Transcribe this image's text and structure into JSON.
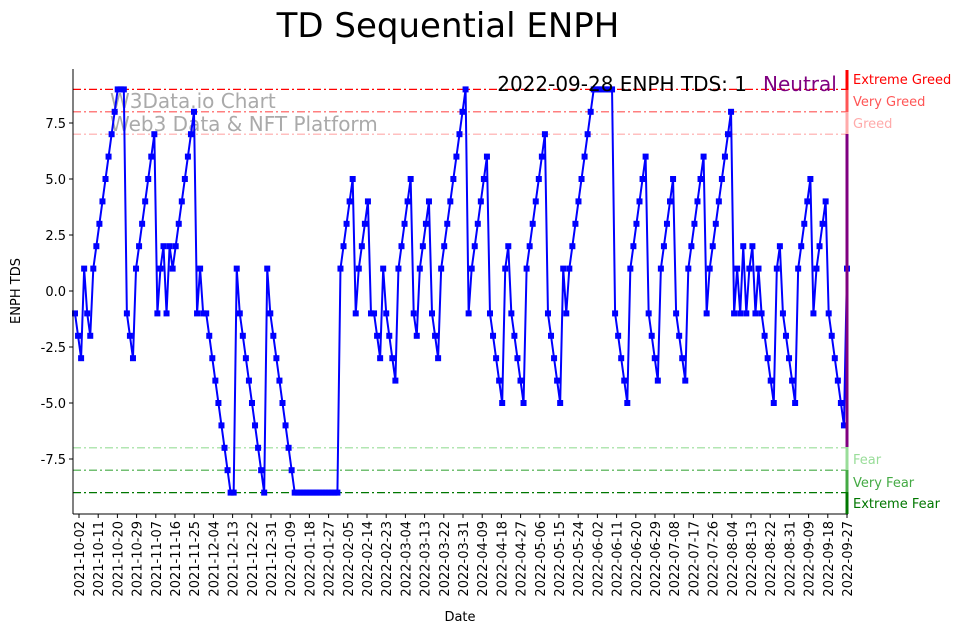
{
  "chart_data": {
    "type": "line",
    "title": "TD Sequential ENPH",
    "xlabel": "Date",
    "ylabel": "ENPH TDS",
    "ylim": [
      -9.8,
      9.8
    ],
    "yticks": [
      "-7.5",
      "-5.0",
      "-2.5",
      "0.0",
      "2.5",
      "5.0",
      "7.5"
    ],
    "ytick_values": [
      -7.5,
      -5,
      -2.5,
      0,
      2.5,
      5,
      7.5
    ],
    "xticks": [
      "2021-10-02",
      "2021-10-11",
      "2021-10-20",
      "2021-10-29",
      "2021-11-07",
      "2021-11-16",
      "2021-11-25",
      "2021-12-04",
      "2021-12-13",
      "2021-12-22",
      "2021-12-31",
      "2022-01-09",
      "2022-01-18",
      "2022-01-27",
      "2022-02-05",
      "2022-02-14",
      "2022-02-23",
      "2022-03-04",
      "2022-03-13",
      "2022-03-22",
      "2022-03-31",
      "2022-04-09",
      "2022-04-18",
      "2022-04-27",
      "2022-05-06",
      "2022-05-15",
      "2022-05-24",
      "2022-06-02",
      "2022-06-11",
      "2022-06-20",
      "2022-06-29",
      "2022-07-08",
      "2022-07-17",
      "2022-07-26",
      "2022-08-04",
      "2022-08-13",
      "2022-08-22",
      "2022-08-31",
      "2022-09-09",
      "2022-09-18",
      "2022-09-27"
    ],
    "series": [
      {
        "name": "ENPH TDS",
        "color": "#0000ff",
        "values": [
          -1,
          -2,
          -3,
          1,
          -1,
          -2,
          1,
          2,
          3,
          4,
          5,
          6,
          7,
          8,
          9,
          9,
          9,
          -1,
          -2,
          -3,
          1,
          2,
          3,
          4,
          5,
          6,
          7,
          -1,
          1,
          2,
          -1,
          2,
          1,
          2,
          3,
          4,
          5,
          6,
          7,
          8,
          -1,
          1,
          -1,
          -1,
          -2,
          -3,
          -4,
          -5,
          -6,
          -7,
          -8,
          -9,
          -9,
          1,
          -1,
          -2,
          -3,
          -4,
          -5,
          -6,
          -7,
          -8,
          -9,
          1,
          -1,
          -2,
          -3,
          -4,
          -5,
          -6,
          -7,
          -8,
          -9,
          -9,
          -9,
          -9,
          -9,
          -9,
          -9,
          -9,
          -9,
          -9,
          -9,
          -9,
          -9,
          -9,
          -9,
          1,
          2,
          3,
          4,
          5,
          -1,
          1,
          2,
          3,
          4,
          -1,
          -1,
          -2,
          -3,
          1,
          -1,
          -2,
          -3,
          -4,
          1,
          2,
          3,
          4,
          5,
          -1,
          -2,
          1,
          2,
          3,
          4,
          -1,
          -2,
          -3,
          1,
          2,
          3,
          4,
          5,
          6,
          7,
          8,
          9,
          -1,
          1,
          2,
          3,
          4,
          5,
          6,
          -1,
          -2,
          -3,
          -4,
          -5,
          1,
          2,
          -1,
          -2,
          -3,
          -4,
          -5,
          1,
          2,
          3,
          4,
          5,
          6,
          7,
          -1,
          -2,
          -3,
          -4,
          -5,
          1,
          -1,
          1,
          2,
          3,
          4,
          5,
          6,
          7,
          8,
          9,
          9,
          9,
          9,
          9,
          9,
          9,
          -1,
          -2,
          -3,
          -4,
          -5,
          1,
          2,
          3,
          4,
          5,
          6,
          -1,
          -2,
          -3,
          -4,
          1,
          2,
          3,
          4,
          5,
          -1,
          -2,
          -3,
          -4,
          1,
          2,
          3,
          4,
          5,
          6,
          -1,
          1,
          2,
          3,
          4,
          5,
          6,
          7,
          8,
          -1,
          1,
          -1,
          2,
          -1,
          1,
          2,
          -1,
          1,
          -1,
          -2,
          -3,
          -4,
          -5,
          1,
          2,
          -1,
          -2,
          -3,
          -4,
          -5,
          1,
          2,
          3,
          4,
          5,
          -1,
          1,
          2,
          3,
          4,
          -1,
          -2,
          -3,
          -4,
          -5,
          -6,
          1
        ]
      }
    ],
    "levels": [
      {
        "value": 9,
        "label": "Extreme Greed",
        "color": "#ff0000"
      },
      {
        "value": 8,
        "label": "Very Greed",
        "color": "#ff5555"
      },
      {
        "value": 7,
        "label": "Greed",
        "color": "#ffaaaa"
      },
      {
        "value": -7,
        "label": "Fear",
        "color": "#99dd99"
      },
      {
        "value": -8,
        "label": "Very Fear",
        "color": "#44aa44"
      },
      {
        "value": -9,
        "label": "Extreme Fear",
        "color": "#007700"
      }
    ],
    "annotation": "2022-09-28 ENPH TDS: 1",
    "status": "Neutral",
    "status_color": "#800080",
    "watermark": [
      "W3Data.io Chart",
      "Web3 Data & NFT Platform"
    ]
  }
}
